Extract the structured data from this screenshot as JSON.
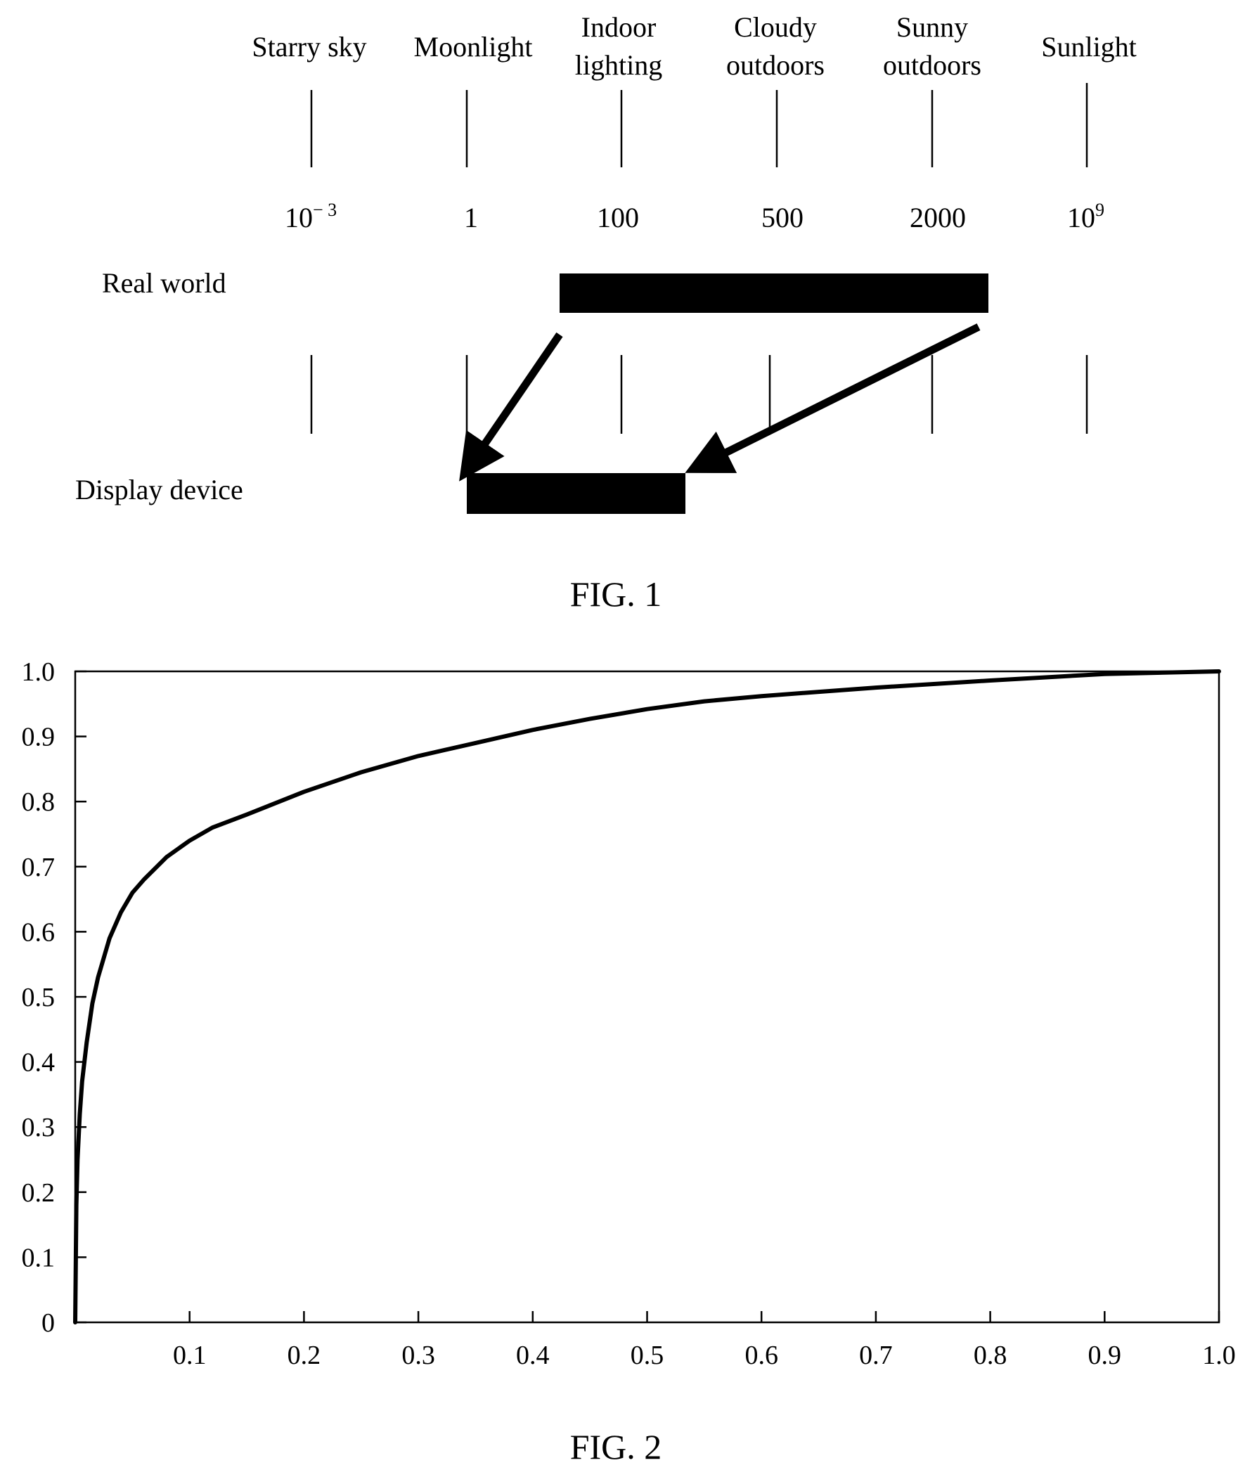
{
  "figure1": {
    "caption": "FIG. 1",
    "scene_labels": [
      [
        "Starry sky"
      ],
      [
        "Moonlight"
      ],
      [
        "Indoor",
        "lighting"
      ],
      [
        "Cloudy",
        "outdoors"
      ],
      [
        "Sunny",
        "outdoors"
      ],
      [
        "Sunlight"
      ]
    ],
    "luminance_values": [
      {
        "base": "10",
        "sup": "− 3"
      },
      {
        "base": "1",
        "sup": ""
      },
      {
        "base": "100",
        "sup": ""
      },
      {
        "base": "500",
        "sup": ""
      },
      {
        "base": "2000",
        "sup": ""
      },
      {
        "base": "10",
        "sup": "9"
      }
    ],
    "row_real_world": "Real world",
    "row_display_device": "Display device"
  },
  "figure2": {
    "caption": "FIG. 2"
  },
  "chart_data": {
    "type": "line",
    "title": "",
    "xlabel": "",
    "ylabel": "",
    "xlim": [
      0,
      1.0
    ],
    "ylim": [
      0,
      1.0
    ],
    "x_ticks": [
      "0.1",
      "0.2",
      "0.3",
      "0.4",
      "0.5",
      "0.6",
      "0.7",
      "0.8",
      "0.9",
      "1.0"
    ],
    "y_ticks": [
      "0",
      "0.1",
      "0.2",
      "0.3",
      "0.4",
      "0.5",
      "0.6",
      "0.7",
      "0.8",
      "0.9",
      "1.0"
    ],
    "grid": false,
    "series": [
      {
        "x": [
          0,
          0.001,
          0.002,
          0.004,
          0.006,
          0.01,
          0.015,
          0.02,
          0.03,
          0.04,
          0.05,
          0.06,
          0.08,
          0.1,
          0.12,
          0.15,
          0.2,
          0.25,
          0.3,
          0.35,
          0.4,
          0.45,
          0.5,
          0.55,
          0.6,
          0.7,
          0.8,
          0.9,
          1.0
        ],
        "y": [
          0,
          0.18,
          0.25,
          0.32,
          0.37,
          0.43,
          0.49,
          0.53,
          0.59,
          0.63,
          0.66,
          0.68,
          0.715,
          0.74,
          0.76,
          0.78,
          0.815,
          0.845,
          0.87,
          0.89,
          0.91,
          0.927,
          0.942,
          0.954,
          0.962,
          0.975,
          0.986,
          0.996,
          1.0
        ]
      }
    ]
  }
}
